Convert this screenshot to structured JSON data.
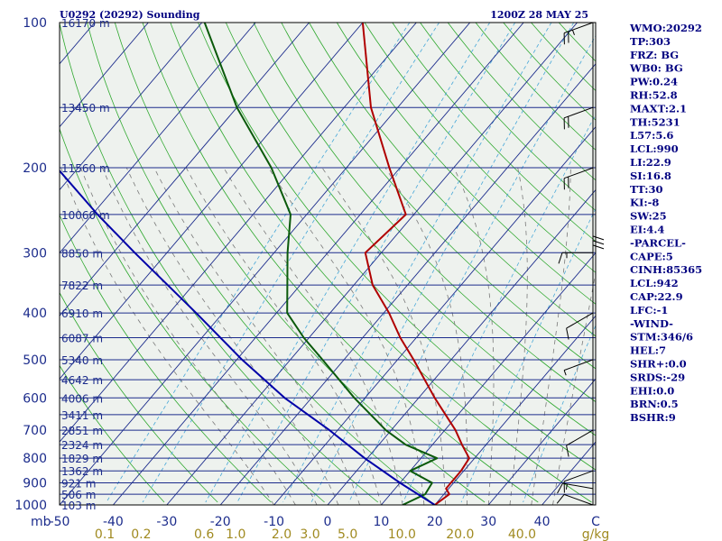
{
  "chart_data": {
    "type": "line",
    "title_left": "U0292 (20292) Sounding",
    "title_right": "1200Z 28 MAY 25",
    "x_units_label": "C",
    "y_units_label": "mb",
    "mixing_units_label": "g/kg",
    "xlim": [
      -50,
      50
    ],
    "ylim": [
      1000,
      100
    ],
    "y_scale": "log",
    "skew": true,
    "grid": true,
    "pressure_ticks": [
      100,
      200,
      300,
      400,
      500,
      600,
      700,
      800,
      900,
      1000
    ],
    "temp_ticks": [
      "-50",
      "-40",
      "-30",
      "-20",
      "-10",
      "0",
      "10",
      "20",
      "30",
      "40",
      "C"
    ],
    "mixing_ratio_labels": [
      "0.1",
      "0.2",
      "0.6",
      "1.0",
      "2.0",
      "3.0",
      "5.0",
      "10.0",
      "20.0",
      "40.0"
    ],
    "height_labels": [
      {
        "p": 100,
        "text": "16170 m"
      },
      {
        "p": 150,
        "text": "13450 m"
      },
      {
        "p": 200,
        "text": "11560 m"
      },
      {
        "p": 250,
        "text": "10060 m"
      },
      {
        "p": 300,
        "text": "8850 m"
      },
      {
        "p": 350,
        "text": "7822 m"
      },
      {
        "p": 400,
        "text": "6910 m"
      },
      {
        "p": 450,
        "text": "6087 m"
      },
      {
        "p": 500,
        "text": "5340 m"
      },
      {
        "p": 550,
        "text": "4642 m"
      },
      {
        "p": 600,
        "text": "4006 m"
      },
      {
        "p": 650,
        "text": "3411 m"
      },
      {
        "p": 700,
        "text": "2851 m"
      },
      {
        "p": 750,
        "text": "2324 m"
      },
      {
        "p": 800,
        "text": "1829 m"
      },
      {
        "p": 850,
        "text": "1362 m"
      },
      {
        "p": 900,
        "text": "921 m"
      },
      {
        "p": 950,
        "text": "506 m"
      },
      {
        "p": 1000,
        "text": "103 m"
      }
    ],
    "series": [
      {
        "color": "#b00000",
        "points": [
          {
            "p": 1000,
            "t": 20.0
          },
          {
            "p": 950,
            "t": 21.0
          },
          {
            "p": 925,
            "t": 19.5
          },
          {
            "p": 900,
            "t": 19.5
          },
          {
            "p": 850,
            "t": 19.5
          },
          {
            "p": 800,
            "t": 19.0
          },
          {
            "p": 750,
            "t": 15.5
          },
          {
            "p": 700,
            "t": 12.0
          },
          {
            "p": 600,
            "t": 3.0
          },
          {
            "p": 500,
            "t": -7.0
          },
          {
            "p": 450,
            "t": -13.0
          },
          {
            "p": 400,
            "t": -19.0
          },
          {
            "p": 350,
            "t": -26.5
          },
          {
            "p": 300,
            "t": -33.0
          },
          {
            "p": 250,
            "t": -31.5
          },
          {
            "p": 200,
            "t": -42.0
          },
          {
            "p": 150,
            "t": -55.0
          },
          {
            "p": 100,
            "t": -70.0
          }
        ]
      },
      {
        "color": "#0b5a0b",
        "points": [
          {
            "p": 1000,
            "t": 14.0
          },
          {
            "p": 950,
            "t": 16.5
          },
          {
            "p": 900,
            "t": 16.0
          },
          {
            "p": 850,
            "t": 10.0
          },
          {
            "p": 800,
            "t": 13.0
          },
          {
            "p": 750,
            "t": 5.0
          },
          {
            "p": 700,
            "t": -1.0
          },
          {
            "p": 600,
            "t": -12.0
          },
          {
            "p": 500,
            "t": -24.0
          },
          {
            "p": 450,
            "t": -31.0
          },
          {
            "p": 400,
            "t": -38.0
          },
          {
            "p": 300,
            "t": -47.5
          },
          {
            "p": 250,
            "t": -53.0
          },
          {
            "p": 200,
            "t": -64.0
          },
          {
            "p": 150,
            "t": -80.0
          },
          {
            "p": 100,
            "t": -99.5
          }
        ]
      },
      {
        "color": "#0000a8",
        "points": [
          {
            "p": 1000,
            "t": 20.0
          },
          {
            "p": 900,
            "t": 10.0
          },
          {
            "p": 800,
            "t": -0.5
          },
          {
            "p": 700,
            "t": -11.5
          },
          {
            "p": 600,
            "t": -25.0
          },
          {
            "p": 500,
            "t": -39.0
          },
          {
            "p": 400,
            "t": -55.0
          },
          {
            "p": 300,
            "t": -76.0
          },
          {
            "p": 250,
            "t": -89.0
          },
          {
            "p": 200,
            "t": -104.0
          },
          {
            "p": 150,
            "t": -122.0
          },
          {
            "p": 120,
            "t": -133.0
          }
        ]
      }
    ],
    "wind_barbs": [
      {
        "p": 1000,
        "dir": 290,
        "spd": 10
      },
      {
        "p": 925,
        "dir": 280,
        "spd": 15
      },
      {
        "p": 850,
        "dir": 250,
        "spd": 10
      },
      {
        "p": 700,
        "dir": 240,
        "spd": 10
      },
      {
        "p": 500,
        "dir": 250,
        "spd": 5
      },
      {
        "p": 400,
        "dir": 240,
        "spd": 10
      },
      {
        "p": 300,
        "dir": 270,
        "spd": 15
      },
      {
        "p": 250,
        "dir": 180,
        "spd": 30
      },
      {
        "p": 200,
        "dir": 250,
        "spd": 20
      },
      {
        "p": 150,
        "dir": 250,
        "spd": 20
      },
      {
        "p": 100,
        "dir": 250,
        "spd": 25
      }
    ],
    "indices": [
      "WMO:20292",
      "TP:303",
      "FRZ: BG",
      "WB0: BG",
      "PW:0.24",
      "RH:52.8",
      "MAXT:2.1",
      "TH:5231",
      "L57:5.6",
      "LCL:990",
      "LI:22.9",
      "SI:16.8",
      "TT:30",
      "KI:-8",
      "SW:25",
      "EI:4.4",
      "-PARCEL-",
      "CAPE:5",
      "CINH:85365",
      "LCL:942",
      "CAP:22.9",
      "LFC:-1",
      "-WIND-",
      "STM:346/6",
      "HEL:7",
      "SHR+:0.0",
      "SRDS:-29",
      "EHI:0.0",
      "BRN:0.5",
      "BSHR:9"
    ]
  }
}
